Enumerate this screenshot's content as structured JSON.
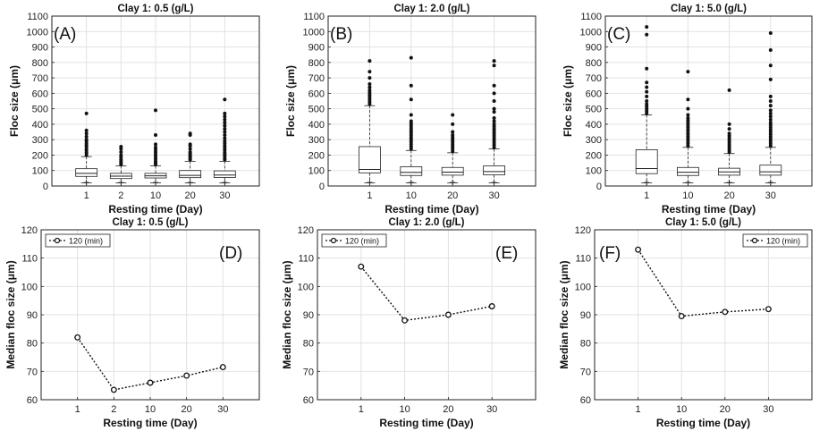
{
  "chart_data": [
    {
      "type": "box",
      "panel_label": "(A)",
      "title": "Clay 1: 0.5 (g/L)",
      "xlabel": "Resting time (Day)",
      "ylabel": "Floc size (μm)",
      "ylim": [
        0,
        1100
      ],
      "yticks": [
        0,
        100,
        200,
        300,
        400,
        500,
        600,
        700,
        800,
        900,
        1000,
        1100
      ],
      "grid": true,
      "categories": [
        "1",
        "2",
        "10",
        "20",
        "30"
      ],
      "boxes": [
        {
          "min": 20,
          "q1": 62,
          "median": 82,
          "q3": 112,
          "max": 190
        },
        {
          "min": 20,
          "q1": 48,
          "median": 64,
          "q3": 82,
          "max": 130
        },
        {
          "min": 20,
          "q1": 52,
          "median": 66,
          "q3": 82,
          "max": 130
        },
        {
          "min": 20,
          "q1": 54,
          "median": 69,
          "q3": 100,
          "max": 160
        },
        {
          "min": 20,
          "q1": 55,
          "median": 71,
          "q3": 98,
          "max": 160
        }
      ],
      "outliers": [
        [
          200,
          215,
          230,
          240,
          255,
          265,
          275,
          290,
          300,
          320,
          340,
          360,
          470
        ],
        [
          140,
          150,
          160,
          170,
          185,
          200,
          220,
          240,
          255
        ],
        [
          140,
          150,
          160,
          175,
          190,
          205,
          220,
          235,
          250,
          270,
          330,
          490
        ],
        [
          170,
          180,
          190,
          200,
          210,
          220,
          240,
          260,
          270,
          330,
          340
        ],
        [
          170,
          180,
          195,
          205,
          215,
          230,
          245,
          260,
          275,
          290,
          310,
          330,
          350,
          370,
          390,
          410,
          430,
          450,
          470,
          560
        ]
      ]
    },
    {
      "type": "box",
      "panel_label": "(B)",
      "title": "Clay 1: 2.0 (g/L)",
      "xlabel": "Resting time (Day)",
      "ylabel": "Floc size (μm)",
      "ylim": [
        0,
        1100
      ],
      "yticks": [
        0,
        100,
        200,
        300,
        400,
        500,
        600,
        700,
        800,
        900,
        1000,
        1100
      ],
      "grid": true,
      "categories": [
        "1",
        "10",
        "20",
        "30"
      ],
      "boxes": [
        {
          "min": 20,
          "q1": 85,
          "median": 107,
          "q3": 255,
          "max": 520
        },
        {
          "min": 20,
          "q1": 68,
          "median": 88,
          "q3": 125,
          "max": 230
        },
        {
          "min": 20,
          "q1": 70,
          "median": 90,
          "q3": 120,
          "max": 215
        },
        {
          "min": 20,
          "q1": 72,
          "median": 93,
          "q3": 130,
          "max": 240
        }
      ],
      "outliers": [
        [
          530,
          545,
          560,
          575,
          590,
          605,
          620,
          640,
          660,
          700,
          740,
          810
        ],
        [
          240,
          255,
          270,
          285,
          300,
          315,
          330,
          345,
          360,
          375,
          390,
          405,
          420,
          460,
          560,
          650,
          830
        ],
        [
          225,
          240,
          255,
          270,
          285,
          300,
          315,
          330,
          350,
          400,
          460
        ],
        [
          250,
          265,
          280,
          295,
          310,
          325,
          340,
          355,
          370,
          385,
          400,
          420,
          440,
          480,
          500,
          550,
          600,
          650,
          780,
          810
        ]
      ]
    },
    {
      "type": "box",
      "panel_label": "(C)",
      "title": "Clay 1: 5.0 (g/L)",
      "xlabel": "Resting time (Day)",
      "ylabel": "Floc size (μm)",
      "ylim": [
        0,
        1100
      ],
      "yticks": [
        0,
        100,
        200,
        300,
        400,
        500,
        600,
        700,
        800,
        900,
        1000,
        1100
      ],
      "grid": true,
      "categories": [
        "1",
        "10",
        "20",
        "30"
      ],
      "boxes": [
        {
          "min": 20,
          "q1": 80,
          "median": 113,
          "q3": 235,
          "max": 460
        },
        {
          "min": 20,
          "q1": 68,
          "median": 89,
          "q3": 120,
          "max": 250
        },
        {
          "min": 20,
          "q1": 70,
          "median": 91,
          "q3": 115,
          "max": 210
        },
        {
          "min": 20,
          "q1": 70,
          "median": 92,
          "q3": 135,
          "max": 250
        }
      ],
      "outliers": [
        [
          470,
          485,
          500,
          515,
          530,
          550,
          580,
          610,
          640,
          670,
          760,
          980,
          1030
        ],
        [
          260,
          275,
          290,
          305,
          320,
          335,
          350,
          365,
          380,
          395,
          410,
          425,
          440,
          460,
          500,
          560,
          740
        ],
        [
          220,
          235,
          250,
          265,
          280,
          295,
          310,
          325,
          340,
          370,
          400,
          620
        ],
        [
          260,
          275,
          290,
          305,
          320,
          335,
          350,
          365,
          380,
          395,
          410,
          430,
          450,
          470,
          490,
          520,
          550,
          580,
          690,
          780,
          880,
          990
        ]
      ]
    },
    {
      "type": "line",
      "panel_label": "(D)",
      "title": "Clay 1: 0.5 (g/L)",
      "xlabel": "Resting time (Day)",
      "ylabel": "Median floc size (μm)",
      "ylim": [
        60,
        120
      ],
      "yticks": [
        60,
        70,
        80,
        90,
        100,
        110,
        120
      ],
      "grid": true,
      "categories": [
        "1",
        "2",
        "10",
        "20",
        "30"
      ],
      "legend_position": "top-left",
      "series": [
        {
          "name": "120 (min)",
          "values": [
            82,
            63.5,
            66,
            68.5,
            71.5
          ]
        }
      ]
    },
    {
      "type": "line",
      "panel_label": "(E)",
      "title": "Clay 1: 2.0 (g/L)",
      "xlabel": "Resting time (Day)",
      "ylabel": "Median floc size (μm)",
      "ylim": [
        60,
        120
      ],
      "yticks": [
        60,
        70,
        80,
        90,
        100,
        110,
        120
      ],
      "grid": true,
      "categories": [
        "1",
        "10",
        "20",
        "30"
      ],
      "legend_position": "top-left",
      "series": [
        {
          "name": "120 (min)",
          "values": [
            107,
            88,
            90,
            93
          ]
        }
      ]
    },
    {
      "type": "line",
      "panel_label": "(F)",
      "title": "Clay 1: 5.0 (g/L)",
      "xlabel": "Resting time (Day)",
      "ylabel": "Median floc size (μm)",
      "ylim": [
        60,
        120
      ],
      "yticks": [
        60,
        70,
        80,
        90,
        100,
        110,
        120
      ],
      "grid": true,
      "categories": [
        "1",
        "10",
        "20",
        "30"
      ],
      "legend_position": "top-right",
      "series": [
        {
          "name": "120 (min)",
          "values": [
            113,
            89.5,
            91,
            92
          ]
        }
      ]
    }
  ]
}
